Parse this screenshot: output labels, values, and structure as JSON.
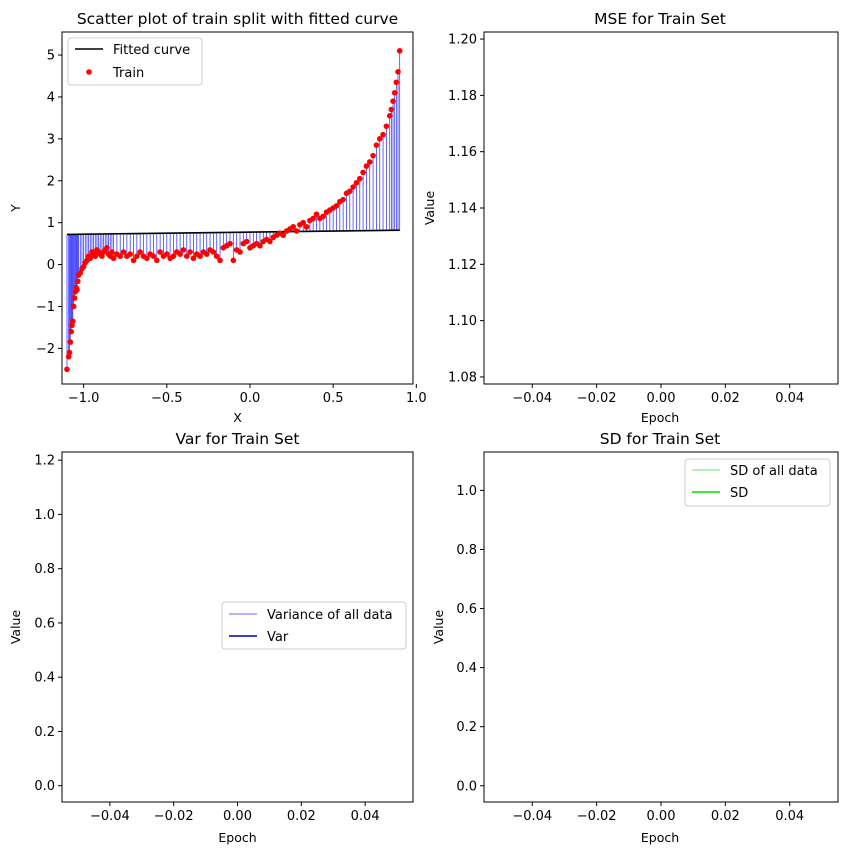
{
  "chart_data": [
    {
      "type": "scatter",
      "title": "Scatter plot of train split with fitted curve",
      "xlabel": "X",
      "ylabel": "Y",
      "xlim": [
        -1.13,
        0.98
      ],
      "ylim": [
        -2.85,
        5.55
      ],
      "xticks": [
        -1.0,
        -0.5,
        0.0,
        0.5,
        1.0
      ],
      "xtick_labels": [
        "−1.0",
        "−0.5",
        "0.0",
        "0.5",
        "1.0"
      ],
      "yticks": [
        -2,
        -1,
        0,
        1,
        2,
        3,
        4,
        5
      ],
      "ytick_labels": [
        "−2",
        "−1",
        "0",
        "1",
        "2",
        "3",
        "4",
        "5"
      ],
      "legend": "top-left",
      "colors": {
        "fitted": "#000000",
        "train": "#ff0000",
        "residual": "#0000ff"
      },
      "series": [
        {
          "name": "Fitted curve",
          "kind": "line",
          "x": [
            -1.1,
            0.9
          ],
          "y": [
            0.72,
            0.82
          ]
        },
        {
          "name": "Train",
          "kind": "scatter",
          "x": [
            -1.1,
            -1.09,
            -1.085,
            -1.08,
            -1.075,
            -1.07,
            -1.065,
            -1.06,
            -1.055,
            -1.05,
            -1.045,
            -1.04,
            -1.035,
            -1.03,
            -1.02,
            -1.01,
            -1.0,
            -0.99,
            -0.98,
            -0.97,
            -0.96,
            -0.95,
            -0.94,
            -0.93,
            -0.92,
            -0.91,
            -0.9,
            -0.89,
            -0.88,
            -0.87,
            -0.86,
            -0.85,
            -0.84,
            -0.83,
            -0.82,
            -0.8,
            -0.78,
            -0.76,
            -0.74,
            -0.72,
            -0.7,
            -0.68,
            -0.66,
            -0.64,
            -0.62,
            -0.6,
            -0.58,
            -0.56,
            -0.54,
            -0.52,
            -0.5,
            -0.48,
            -0.46,
            -0.44,
            -0.42,
            -0.4,
            -0.38,
            -0.36,
            -0.34,
            -0.32,
            -0.3,
            -0.28,
            -0.26,
            -0.24,
            -0.22,
            -0.2,
            -0.18,
            -0.16,
            -0.14,
            -0.12,
            -0.1,
            -0.08,
            -0.06,
            -0.04,
            -0.02,
            0.0,
            0.02,
            0.04,
            0.06,
            0.08,
            0.1,
            0.12,
            0.14,
            0.16,
            0.18,
            0.2,
            0.22,
            0.24,
            0.26,
            0.28,
            0.3,
            0.32,
            0.34,
            0.36,
            0.38,
            0.4,
            0.42,
            0.44,
            0.46,
            0.48,
            0.5,
            0.52,
            0.54,
            0.56,
            0.58,
            0.6,
            0.62,
            0.64,
            0.66,
            0.68,
            0.7,
            0.72,
            0.74,
            0.76,
            0.78,
            0.8,
            0.82,
            0.84,
            0.85,
            0.86,
            0.87,
            0.88,
            0.89,
            0.9
          ],
          "y": [
            -2.5,
            -2.2,
            -2.1,
            -1.85,
            -1.6,
            -1.45,
            -1.35,
            -1.0,
            -0.8,
            -0.65,
            -0.55,
            -0.6,
            -0.4,
            -0.25,
            -0.2,
            -0.1,
            -0.05,
            0.05,
            0.1,
            0.2,
            0.15,
            0.3,
            0.25,
            0.2,
            0.35,
            0.3,
            0.25,
            0.2,
            0.3,
            0.35,
            0.4,
            0.25,
            0.2,
            0.3,
            0.15,
            0.25,
            0.2,
            0.3,
            0.2,
            0.25,
            0.1,
            0.2,
            0.3,
            0.2,
            0.15,
            0.25,
            0.2,
            0.1,
            0.3,
            0.2,
            0.25,
            0.15,
            0.2,
            0.3,
            0.25,
            0.35,
            0.2,
            0.3,
            0.15,
            0.25,
            0.2,
            0.3,
            0.25,
            0.35,
            0.3,
            0.2,
            0.1,
            0.4,
            0.45,
            0.5,
            0.1,
            0.35,
            0.3,
            0.5,
            0.55,
            0.4,
            0.45,
            0.5,
            0.45,
            0.55,
            0.6,
            0.55,
            0.65,
            0.7,
            0.75,
            0.7,
            0.8,
            0.85,
            0.9,
            0.8,
            0.95,
            1.0,
            0.9,
            1.05,
            1.1,
            1.2,
            1.1,
            1.15,
            1.25,
            1.3,
            1.35,
            1.4,
            1.5,
            1.55,
            1.7,
            1.75,
            1.85,
            1.95,
            2.05,
            2.2,
            2.35,
            2.45,
            2.6,
            2.85,
            3.0,
            3.1,
            3.3,
            3.55,
            3.7,
            3.9,
            4.1,
            4.35,
            4.6,
            5.1
          ]
        }
      ]
    },
    {
      "type": "line",
      "title": "MSE for Train Set",
      "xlabel": "Epoch",
      "ylabel": "Value",
      "xlim": [
        -0.055,
        0.055
      ],
      "ylim": [
        1.0775,
        1.2025
      ],
      "xticks": [
        -0.04,
        -0.02,
        0.0,
        0.02,
        0.04
      ],
      "xtick_labels": [
        "−0.04",
        "−0.02",
        "0.00",
        "0.02",
        "0.04"
      ],
      "yticks": [
        1.08,
        1.1,
        1.12,
        1.14,
        1.16,
        1.18,
        1.2
      ],
      "ytick_labels": [
        "1.08",
        "1.10",
        "1.12",
        "1.14",
        "1.16",
        "1.18",
        "1.20"
      ],
      "series": []
    },
    {
      "type": "line",
      "title": "Var for Train Set",
      "xlabel": "Epoch",
      "ylabel": "Value",
      "xlim": [
        -0.055,
        0.055
      ],
      "ylim": [
        -0.06,
        1.23
      ],
      "xticks": [
        -0.04,
        -0.02,
        0.0,
        0.02,
        0.04
      ],
      "xtick_labels": [
        "−0.04",
        "−0.02",
        "0.00",
        "0.02",
        "0.04"
      ],
      "yticks": [
        0.0,
        0.2,
        0.4,
        0.6,
        0.8,
        1.0,
        1.2
      ],
      "ytick_labels": [
        "0.0",
        "0.2",
        "0.4",
        "0.6",
        "0.8",
        "1.0",
        "1.2"
      ],
      "legend": "center-right",
      "series": [
        {
          "name": "Variance of all data",
          "color": "#9999ff",
          "x": [],
          "y": []
        },
        {
          "name": "Var",
          "color": "#0000aa",
          "x": [],
          "y": []
        }
      ]
    },
    {
      "type": "line",
      "title": "SD for Train Set",
      "xlabel": "Epoch",
      "ylabel": "Value",
      "xlim": [
        -0.055,
        0.055
      ],
      "ylim": [
        -0.055,
        1.13
      ],
      "xticks": [
        -0.04,
        -0.02,
        0.0,
        0.02,
        0.04
      ],
      "xtick_labels": [
        "−0.04",
        "−0.02",
        "0.00",
        "0.02",
        "0.04"
      ],
      "yticks": [
        0.0,
        0.2,
        0.4,
        0.6,
        0.8,
        1.0
      ],
      "ytick_labels": [
        "0.0",
        "0.2",
        "0.4",
        "0.6",
        "0.8",
        "1.0"
      ],
      "legend": "top-right",
      "series": [
        {
          "name": "SD of all data",
          "color": "#99ee99",
          "x": [],
          "y": []
        },
        {
          "name": "SD",
          "color": "#00dd00",
          "x": [],
          "y": []
        }
      ]
    }
  ]
}
